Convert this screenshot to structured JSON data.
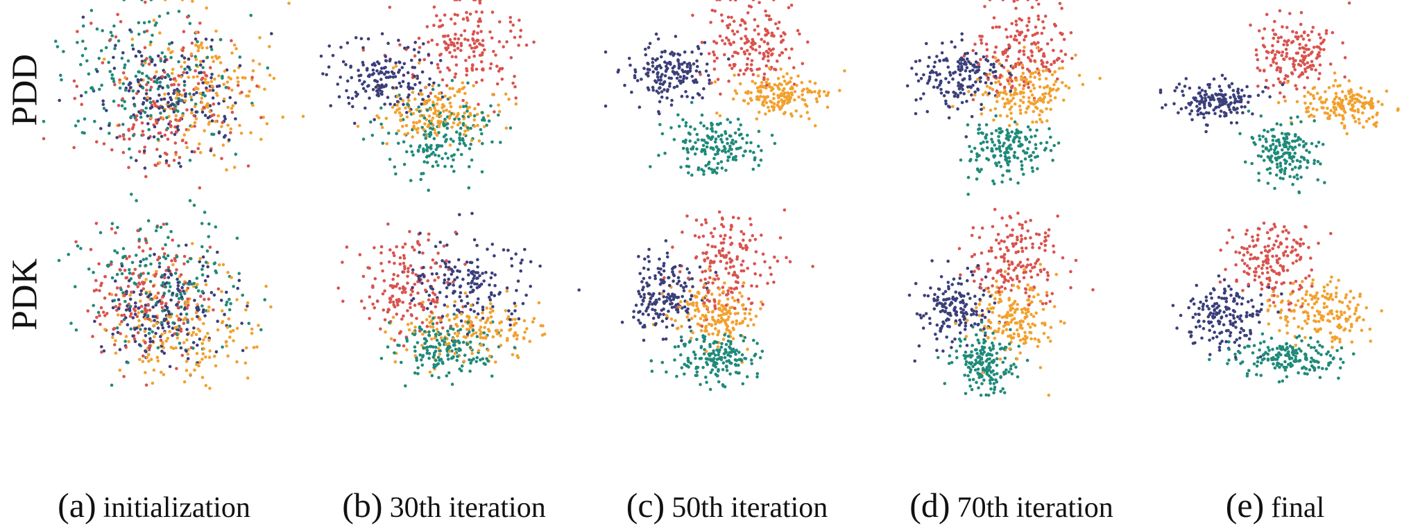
{
  "rows": [
    {
      "label": "PDD"
    },
    {
      "label": "PDK"
    }
  ],
  "columns": [
    {
      "tag": "(a)",
      "text": "initialization"
    },
    {
      "tag": "(b)",
      "text": "30th iteration"
    },
    {
      "tag": "(c)",
      "text": "50th iteration"
    },
    {
      "tag": "(d)",
      "text": "70th iteration"
    },
    {
      "tag": "(e)",
      "text": "final"
    }
  ],
  "chart_data": {
    "type": "scatter",
    "grid": false,
    "axes_visible": false,
    "colors": {
      "navy": "#3b3f7a",
      "red": "#d9534f",
      "orange": "#f2a12e",
      "teal": "#1f8a7a"
    },
    "class_order": [
      "navy",
      "red",
      "orange",
      "teal"
    ],
    "points_per_class": 170,
    "panels": [
      {
        "row": 0,
        "col": 0,
        "clusters": [
          {
            "class": "navy",
            "cx": 0.48,
            "cy": 0.48,
            "sx": 0.16,
            "sy": 0.16
          },
          {
            "class": "red",
            "cx": 0.45,
            "cy": 0.52,
            "sx": 0.18,
            "sy": 0.2
          },
          {
            "class": "orange",
            "cx": 0.63,
            "cy": 0.46,
            "sx": 0.16,
            "sy": 0.18
          },
          {
            "class": "teal",
            "cx": 0.4,
            "cy": 0.4,
            "sx": 0.18,
            "sy": 0.2
          }
        ]
      },
      {
        "row": 0,
        "col": 1,
        "clusters": [
          {
            "class": "navy",
            "cx": 0.22,
            "cy": 0.4,
            "sx": 0.11,
            "sy": 0.1
          },
          {
            "class": "red",
            "cx": 0.58,
            "cy": 0.23,
            "sx": 0.12,
            "sy": 0.12
          },
          {
            "class": "orange",
            "cx": 0.42,
            "cy": 0.57,
            "sx": 0.12,
            "sy": 0.08
          },
          {
            "class": "teal",
            "cx": 0.45,
            "cy": 0.7,
            "sx": 0.11,
            "sy": 0.11
          }
        ]
      },
      {
        "row": 0,
        "col": 2,
        "clusters": [
          {
            "class": "navy",
            "cx": 0.22,
            "cy": 0.38,
            "sx": 0.09,
            "sy": 0.08
          },
          {
            "class": "red",
            "cx": 0.57,
            "cy": 0.21,
            "sx": 0.09,
            "sy": 0.11
          },
          {
            "class": "orange",
            "cx": 0.68,
            "cy": 0.49,
            "sx": 0.1,
            "sy": 0.06
          },
          {
            "class": "teal",
            "cx": 0.41,
            "cy": 0.77,
            "sx": 0.09,
            "sy": 0.08
          }
        ]
      },
      {
        "row": 0,
        "col": 3,
        "clusters": [
          {
            "class": "navy",
            "cx": 0.24,
            "cy": 0.39,
            "sx": 0.09,
            "sy": 0.09
          },
          {
            "class": "red",
            "cx": 0.51,
            "cy": 0.24,
            "sx": 0.1,
            "sy": 0.13
          },
          {
            "class": "orange",
            "cx": 0.51,
            "cy": 0.48,
            "sx": 0.1,
            "sy": 0.08
          },
          {
            "class": "teal",
            "cx": 0.44,
            "cy": 0.78,
            "sx": 0.08,
            "sy": 0.08
          }
        ]
      },
      {
        "row": 0,
        "col": 4,
        "clusters": [
          {
            "class": "navy",
            "cx": 0.18,
            "cy": 0.52,
            "sx": 0.09,
            "sy": 0.05
          },
          {
            "class": "red",
            "cx": 0.52,
            "cy": 0.27,
            "sx": 0.09,
            "sy": 0.09
          },
          {
            "class": "orange",
            "cx": 0.73,
            "cy": 0.54,
            "sx": 0.1,
            "sy": 0.06
          },
          {
            "class": "teal",
            "cx": 0.48,
            "cy": 0.79,
            "sx": 0.07,
            "sy": 0.08
          }
        ]
      },
      {
        "row": 1,
        "col": 0,
        "clusters": [
          {
            "class": "navy",
            "cx": 0.48,
            "cy": 0.58,
            "sx": 0.13,
            "sy": 0.15
          },
          {
            "class": "red",
            "cx": 0.36,
            "cy": 0.5,
            "sx": 0.14,
            "sy": 0.17
          },
          {
            "class": "orange",
            "cx": 0.55,
            "cy": 0.65,
            "sx": 0.15,
            "sy": 0.15
          },
          {
            "class": "teal",
            "cx": 0.45,
            "cy": 0.42,
            "sx": 0.17,
            "sy": 0.18
          }
        ]
      },
      {
        "row": 1,
        "col": 1,
        "clusters": [
          {
            "class": "navy",
            "cx": 0.58,
            "cy": 0.42,
            "sx": 0.13,
            "sy": 0.11
          },
          {
            "class": "red",
            "cx": 0.32,
            "cy": 0.44,
            "sx": 0.11,
            "sy": 0.12
          },
          {
            "class": "orange",
            "cx": 0.58,
            "cy": 0.67,
            "sx": 0.15,
            "sy": 0.08
          },
          {
            "class": "teal",
            "cx": 0.47,
            "cy": 0.77,
            "sx": 0.11,
            "sy": 0.07
          }
        ]
      },
      {
        "row": 1,
        "col": 2,
        "clusters": [
          {
            "class": "navy",
            "cx": 0.2,
            "cy": 0.48,
            "sx": 0.08,
            "sy": 0.1
          },
          {
            "class": "red",
            "cx": 0.47,
            "cy": 0.32,
            "sx": 0.1,
            "sy": 0.14
          },
          {
            "class": "orange",
            "cx": 0.42,
            "cy": 0.58,
            "sx": 0.09,
            "sy": 0.08
          },
          {
            "class": "teal",
            "cx": 0.42,
            "cy": 0.82,
            "sx": 0.09,
            "sy": 0.06
          }
        ]
      },
      {
        "row": 1,
        "col": 3,
        "clusters": [
          {
            "class": "navy",
            "cx": 0.22,
            "cy": 0.55,
            "sx": 0.07,
            "sy": 0.09
          },
          {
            "class": "red",
            "cx": 0.48,
            "cy": 0.3,
            "sx": 0.1,
            "sy": 0.13
          },
          {
            "class": "orange",
            "cx": 0.47,
            "cy": 0.6,
            "sx": 0.08,
            "sy": 0.1
          },
          {
            "class": "teal",
            "cx": 0.35,
            "cy": 0.85,
            "sx": 0.07,
            "sy": 0.08
          }
        ]
      },
      {
        "row": 1,
        "col": 4,
        "clusters": [
          {
            "class": "navy",
            "cx": 0.22,
            "cy": 0.6,
            "sx": 0.08,
            "sy": 0.09
          },
          {
            "class": "red",
            "cx": 0.42,
            "cy": 0.28,
            "sx": 0.09,
            "sy": 0.12
          },
          {
            "class": "orange",
            "cx": 0.64,
            "cy": 0.57,
            "sx": 0.1,
            "sy": 0.08
          },
          {
            "class": "teal",
            "cx": 0.48,
            "cy": 0.82,
            "sx": 0.11,
            "sy": 0.05
          }
        ]
      }
    ]
  }
}
